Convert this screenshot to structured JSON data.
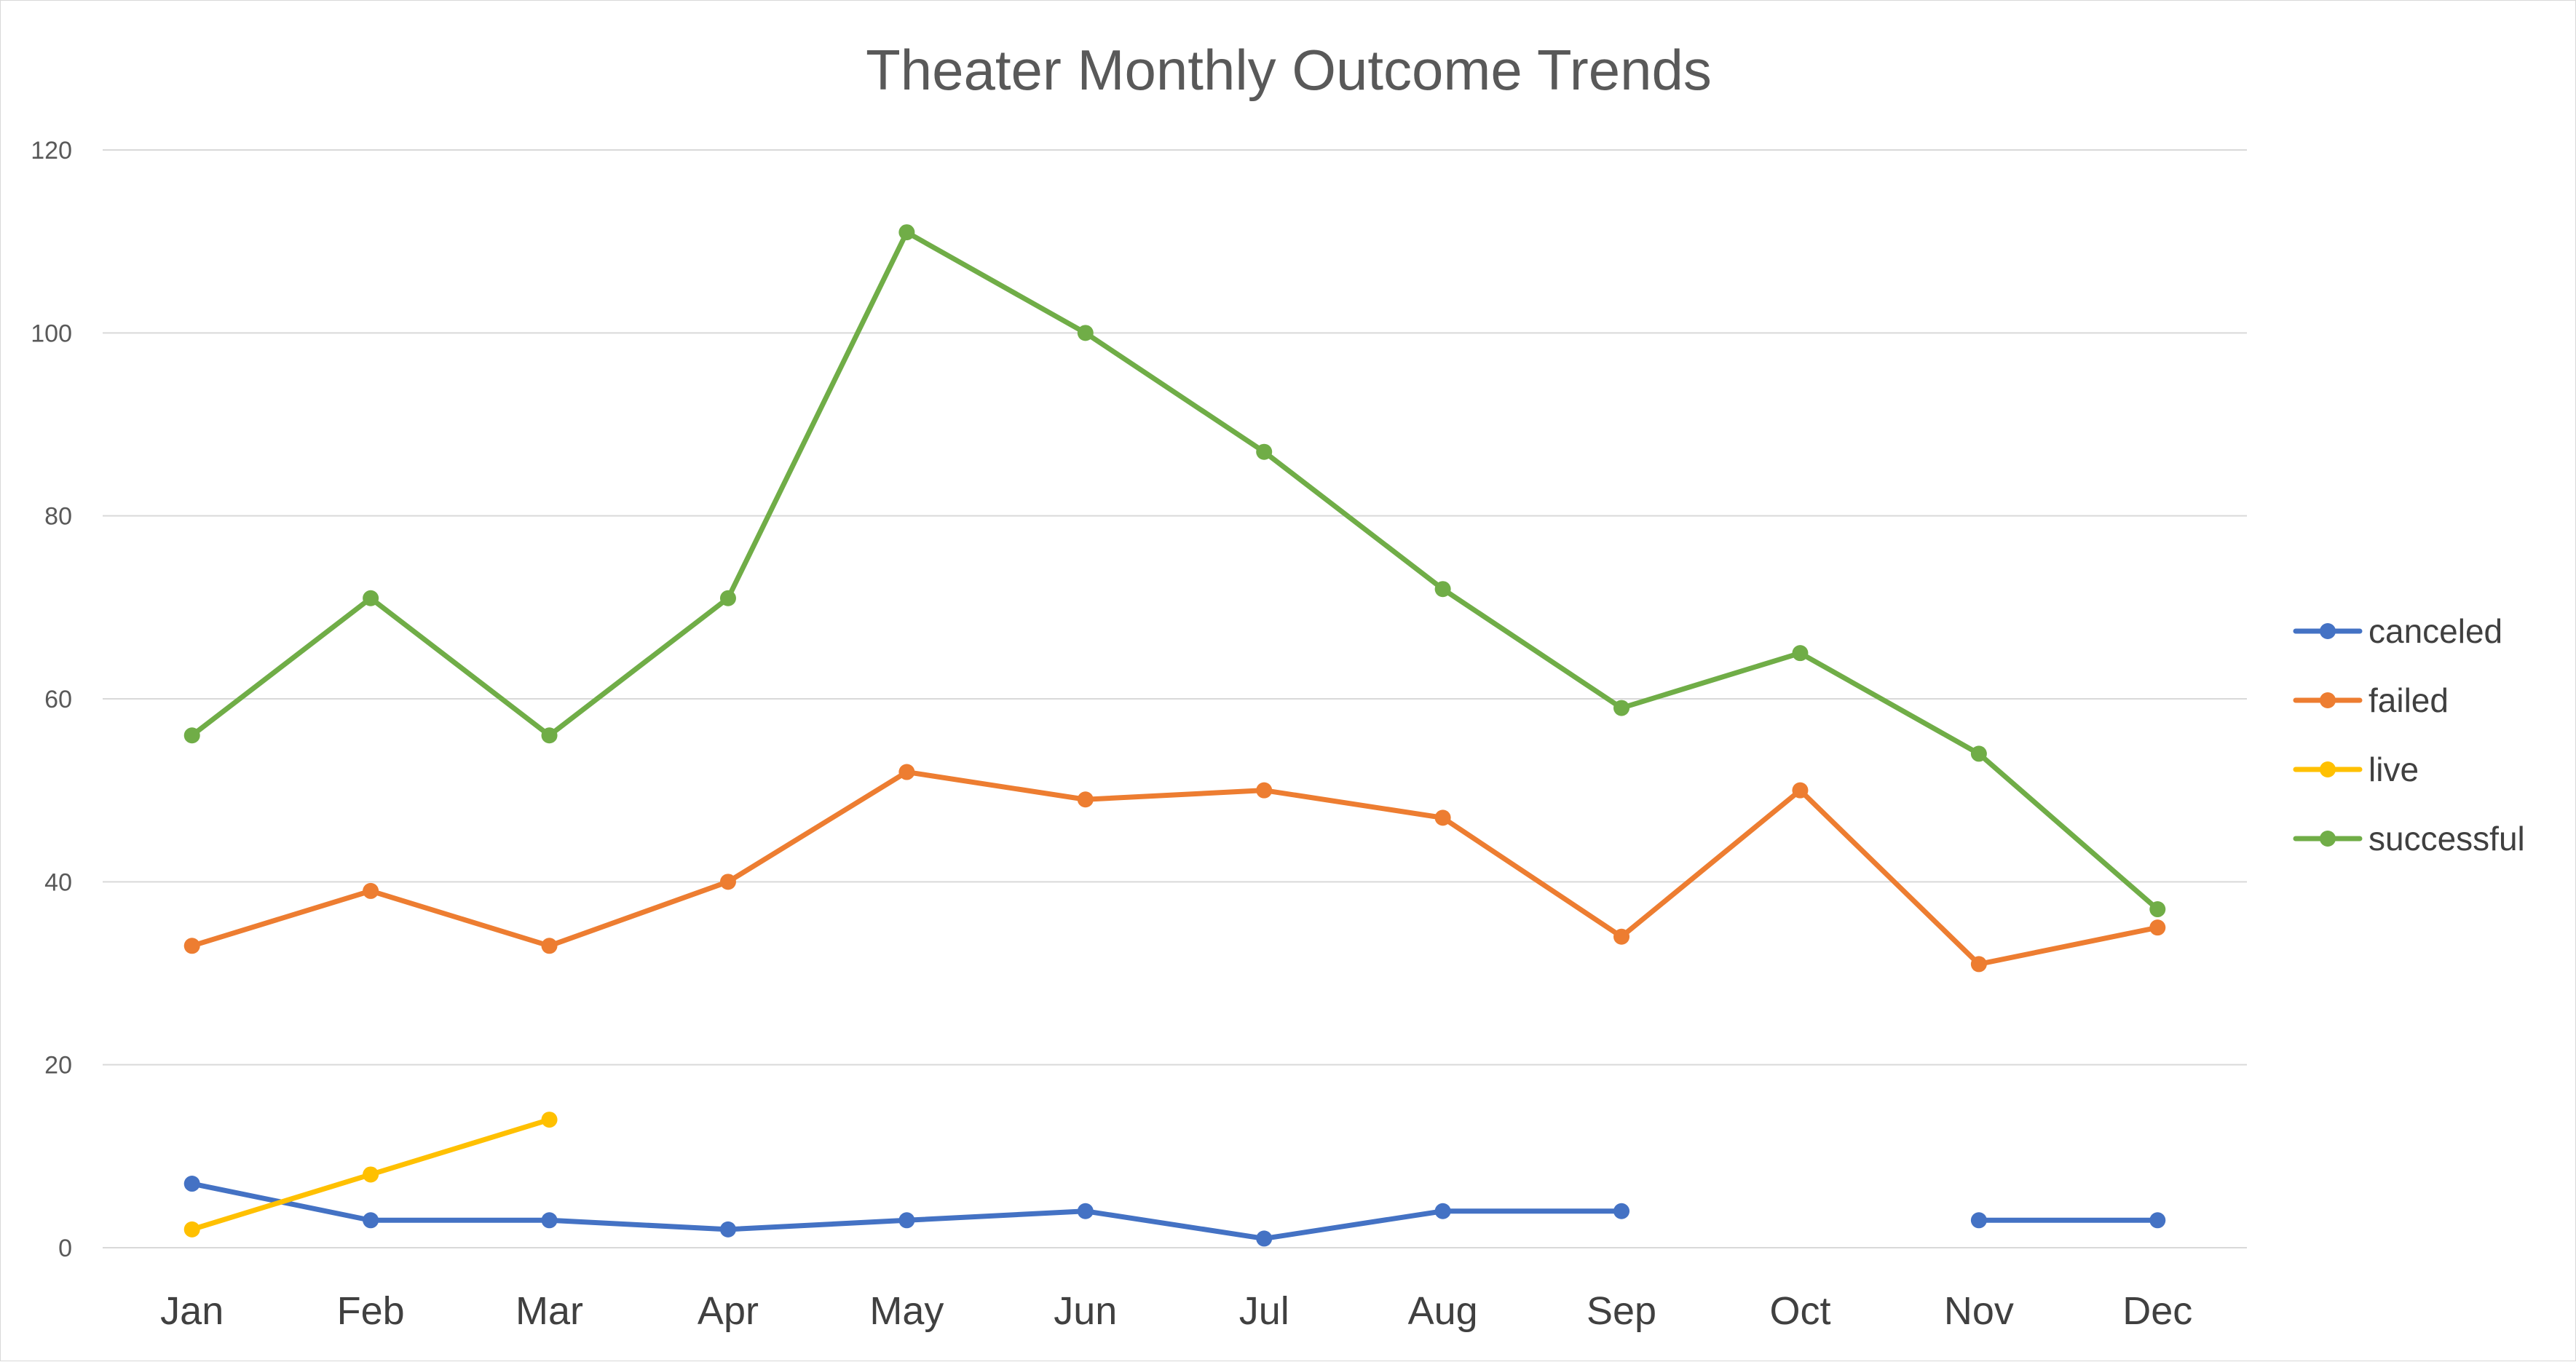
{
  "chart_data": {
    "type": "line",
    "title": "Theater Monthly Outcome Trends",
    "xlabel": "",
    "ylabel": "",
    "categories": [
      "Jan",
      "Feb",
      "Mar",
      "Apr",
      "May",
      "Jun",
      "Jul",
      "Aug",
      "Sep",
      "Oct",
      "Nov",
      "Dec"
    ],
    "ylim": [
      0,
      120
    ],
    "yticks": [
      0,
      20,
      40,
      60,
      80,
      100,
      120
    ],
    "grid": true,
    "legend_position": "right",
    "markers": true,
    "series": [
      {
        "name": "canceled",
        "color": "#4472C4",
        "values": [
          7,
          3,
          3,
          2,
          3,
          4,
          1,
          4,
          4,
          null,
          3,
          3
        ]
      },
      {
        "name": "failed",
        "color": "#ED7D31",
        "values": [
          33,
          39,
          33,
          40,
          52,
          49,
          50,
          47,
          34,
          50,
          31,
          35
        ]
      },
      {
        "name": "live",
        "color": "#FFC000",
        "values": [
          2,
          8,
          14,
          null,
          null,
          null,
          null,
          null,
          null,
          null,
          null,
          null
        ]
      },
      {
        "name": "successful",
        "color": "#70AD47",
        "values": [
          56,
          71,
          56,
          71,
          111,
          100,
          87,
          72,
          59,
          65,
          54,
          37
        ]
      }
    ]
  }
}
